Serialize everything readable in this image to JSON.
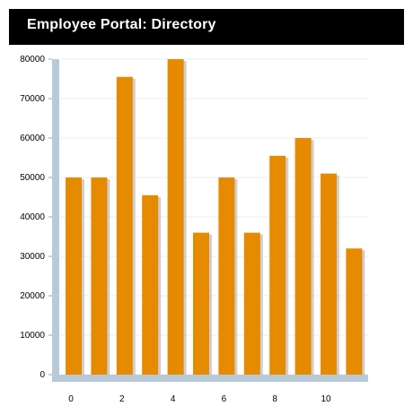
{
  "header": {
    "title": "Employee Portal: Directory"
  },
  "chart_data": {
    "type": "bar",
    "title": "",
    "xlabel": "",
    "ylabel": "",
    "x": [
      0,
      1,
      2,
      3,
      4,
      5,
      6,
      7,
      8,
      9,
      10,
      11
    ],
    "values": [
      50000,
      50000,
      75500,
      45500,
      80000,
      36000,
      50000,
      36000,
      55500,
      60000,
      51000,
      32000
    ],
    "ylim": [
      0,
      80000
    ],
    "yticks": [
      0,
      10000,
      20000,
      30000,
      40000,
      50000,
      60000,
      70000,
      80000
    ],
    "xticks": [
      0,
      2,
      4,
      6,
      8,
      10
    ],
    "grid": true,
    "legend": "none",
    "colors": {
      "bar": "#e68a00",
      "axis": "#b8cad8",
      "grid": "#eeeeee",
      "shadow": "#bbbbbb"
    }
  }
}
